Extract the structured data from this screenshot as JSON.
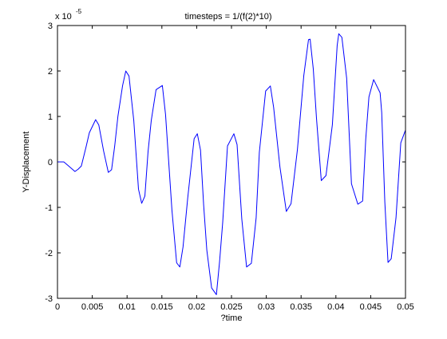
{
  "chart_data": {
    "type": "line",
    "title": "timesteps = 1/(f(2)*10)",
    "xlabel": "?time",
    "ylabel": "Y-Displacement",
    "exponent_base": "x 10",
    "exponent_power": "-5",
    "xlim": [
      0,
      0.05
    ],
    "ylim": [
      -3,
      3
    ],
    "xticks": [
      0,
      0.005,
      0.01,
      0.015,
      0.02,
      0.025,
      0.03,
      0.035,
      0.04,
      0.045,
      0.05
    ],
    "xtick_labels": [
      "0",
      "0.005",
      "0.01",
      "0.015",
      "0.02",
      "0.025",
      "0.03",
      "0.035",
      "0.04",
      "0.045",
      "0.05"
    ],
    "yticks": [
      -3,
      -2,
      -1,
      0,
      1,
      2,
      3
    ],
    "ytick_labels": [
      "-3",
      "-2",
      "-1",
      "0",
      "1",
      "2",
      "3"
    ],
    "grid": false,
    "line_color": "#0000ff",
    "series": [
      {
        "x": [
          0,
          0.00092,
          0.0016,
          0.00251,
          0.00297,
          0.00343,
          0.00411,
          0.00457,
          0.00548,
          0.00594,
          0.00663,
          0.00731,
          0.00777,
          0.00822,
          0.00868,
          0.00936,
          0.00982,
          0.01028,
          0.01096,
          0.01164,
          0.0121,
          0.01256,
          0.01302,
          0.01347,
          0.01416,
          0.01507,
          0.01553,
          0.01644,
          0.01712,
          0.01758,
          0.01804,
          0.01872,
          0.01963,
          0.02009,
          0.02055,
          0.021,
          0.02146,
          0.02215,
          0.02283,
          0.02329,
          0.02374,
          0.02443,
          0.02534,
          0.0258,
          0.02648,
          0.02717,
          0.02785,
          0.02854,
          0.029,
          0.02991,
          0.03059,
          0.03105,
          0.03196,
          0.03288,
          0.03356,
          0.03447,
          0.03539,
          0.03607,
          0.0363,
          0.03676,
          0.03721,
          0.0379,
          0.03858,
          0.0395,
          0.04018,
          0.04041,
          0.04086,
          0.04155,
          0.04224,
          0.04315,
          0.04384,
          0.04429,
          0.04475,
          0.04543,
          0.04635,
          0.04658,
          0.04703,
          0.04749,
          0.04795,
          0.04863,
          0.04932,
          0.05
        ],
        "y": [
          0,
          0,
          -0.09,
          -0.21,
          -0.16,
          -0.09,
          0.33,
          0.64,
          0.93,
          0.81,
          0.24,
          -0.23,
          -0.17,
          0.35,
          1.0,
          1.68,
          2.0,
          1.89,
          0.91,
          -0.6,
          -0.91,
          -0.75,
          0.23,
          0.91,
          1.59,
          1.68,
          1.04,
          -1.06,
          -2.22,
          -2.31,
          -1.87,
          -0.79,
          0.51,
          0.62,
          0.26,
          -0.94,
          -1.94,
          -2.77,
          -2.92,
          -2.19,
          -1.33,
          0.35,
          0.62,
          0.38,
          -1.25,
          -2.31,
          -2.23,
          -1.23,
          0.21,
          1.56,
          1.67,
          1.2,
          -0.11,
          -1.09,
          -0.92,
          0.27,
          1.9,
          2.69,
          2.7,
          2.04,
          0.96,
          -0.41,
          -0.3,
          0.82,
          2.56,
          2.82,
          2.74,
          1.84,
          -0.48,
          -0.93,
          -0.86,
          0.5,
          1.43,
          1.81,
          1.52,
          1.09,
          -0.88,
          -2.21,
          -2.13,
          -1.23,
          0.42,
          0.7
        ]
      }
    ]
  }
}
